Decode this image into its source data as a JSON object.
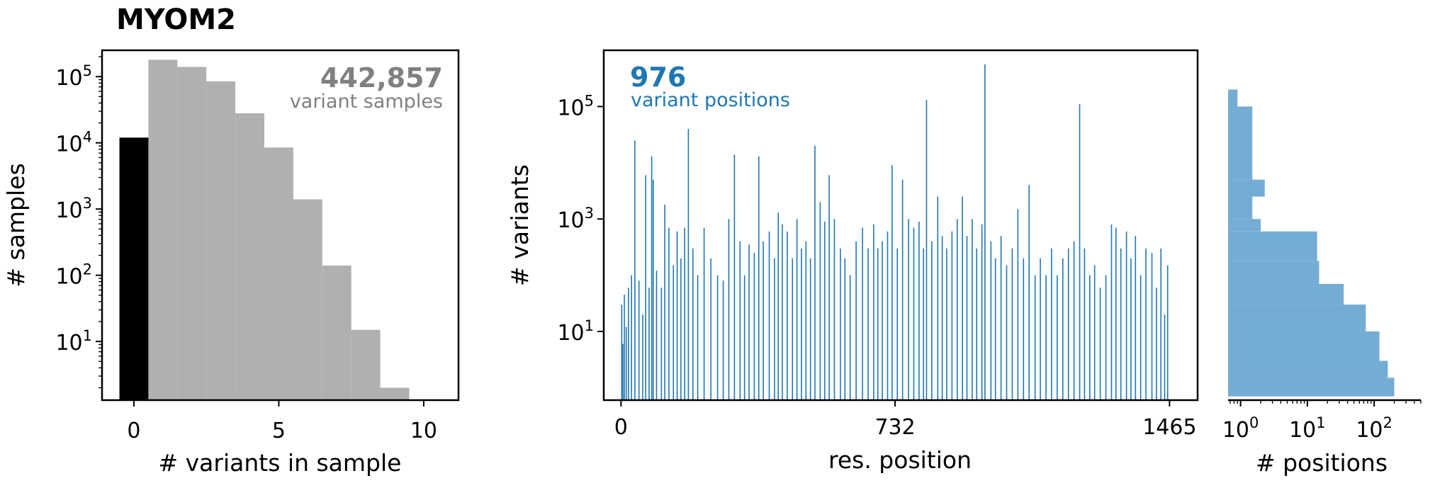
{
  "title": "MYOM2",
  "colors": {
    "gray": "#b0b0b0",
    "black": "#000000",
    "blue": "#1f77b4",
    "lightblue": "#75acd4",
    "annotation_gray": "#808080"
  },
  "chart_data": [
    {
      "id": "samples-histogram",
      "type": "bar",
      "xlabel": "# variants in sample",
      "ylabel": "# samples",
      "yscale": "log",
      "xlim": [
        -1.1,
        11.2
      ],
      "ylim": [
        1.3,
        250000
      ],
      "xticks": [
        {
          "v": 0,
          "label": "0"
        },
        {
          "v": 5,
          "label": "5"
        },
        {
          "v": 10,
          "label": "10"
        }
      ],
      "yticks": [
        {
          "v": 10,
          "exp": "1"
        },
        {
          "v": 100,
          "exp": "2"
        },
        {
          "v": 1000,
          "exp": "3"
        },
        {
          "v": 10000,
          "exp": "4"
        },
        {
          "v": 100000,
          "exp": "5"
        }
      ],
      "annotation": {
        "value": "442,857",
        "label": "variant samples"
      },
      "bars": [
        {
          "x": 0,
          "value": 12000,
          "color": "black"
        },
        {
          "x": 1,
          "value": 180000,
          "color": "gray"
        },
        {
          "x": 2,
          "value": 140000,
          "color": "gray"
        },
        {
          "x": 3,
          "value": 85000,
          "color": "gray"
        },
        {
          "x": 4,
          "value": 28000,
          "color": "gray"
        },
        {
          "x": 5,
          "value": 8500,
          "color": "gray"
        },
        {
          "x": 6,
          "value": 1400,
          "color": "gray"
        },
        {
          "x": 7,
          "value": 140,
          "color": "gray"
        },
        {
          "x": 8,
          "value": 15,
          "color": "gray"
        },
        {
          "x": 9,
          "value": 2,
          "color": "gray"
        }
      ]
    },
    {
      "id": "variants-by-position",
      "type": "bar",
      "xlabel": "res. position",
      "ylabel": "# variants",
      "yscale": "log",
      "xlim": [
        -46,
        1540
      ],
      "ylim": [
        0.6,
        1000000
      ],
      "xticks": [
        {
          "v": 0,
          "label": "0"
        },
        {
          "v": 732,
          "label": "732"
        },
        {
          "v": 1465,
          "label": "1465"
        }
      ],
      "yticks": [
        {
          "v": 10,
          "exp": "1"
        },
        {
          "v": 1000,
          "exp": "3"
        },
        {
          "v": 100000,
          "exp": "5"
        }
      ],
      "annotation": {
        "value": "976",
        "label": "variant positions"
      },
      "peaks": [
        {
          "x": 2,
          "value": 30
        },
        {
          "x": 5,
          "value": 6
        },
        {
          "x": 9,
          "value": 45
        },
        {
          "x": 14,
          "value": 12
        },
        {
          "x": 20,
          "value": 60
        },
        {
          "x": 28,
          "value": 100
        },
        {
          "x": 37,
          "value": 25000
        },
        {
          "x": 48,
          "value": 80
        },
        {
          "x": 58,
          "value": 20
        },
        {
          "x": 66,
          "value": 6000
        },
        {
          "x": 75,
          "value": 60
        },
        {
          "x": 82,
          "value": 13000
        },
        {
          "x": 86,
          "value": 5000
        },
        {
          "x": 95,
          "value": 120
        },
        {
          "x": 108,
          "value": 60
        },
        {
          "x": 117,
          "value": 1800
        },
        {
          "x": 128,
          "value": 700
        },
        {
          "x": 140,
          "value": 150
        },
        {
          "x": 150,
          "value": 600
        },
        {
          "x": 160,
          "value": 200
        },
        {
          "x": 170,
          "value": 700
        },
        {
          "x": 180,
          "value": 40000
        },
        {
          "x": 192,
          "value": 300
        },
        {
          "x": 205,
          "value": 100
        },
        {
          "x": 222,
          "value": 700
        },
        {
          "x": 240,
          "value": 200
        },
        {
          "x": 258,
          "value": 100
        },
        {
          "x": 273,
          "value": 80
        },
        {
          "x": 288,
          "value": 1000
        },
        {
          "x": 303,
          "value": 14000
        },
        {
          "x": 318,
          "value": 400
        },
        {
          "x": 330,
          "value": 100
        },
        {
          "x": 342,
          "value": 350
        },
        {
          "x": 356,
          "value": 250
        },
        {
          "x": 368,
          "value": 13000
        },
        {
          "x": 380,
          "value": 400
        },
        {
          "x": 396,
          "value": 600
        },
        {
          "x": 410,
          "value": 200
        },
        {
          "x": 420,
          "value": 1300
        },
        {
          "x": 431,
          "value": 800
        },
        {
          "x": 444,
          "value": 600
        },
        {
          "x": 458,
          "value": 200
        },
        {
          "x": 470,
          "value": 1000
        },
        {
          "x": 482,
          "value": 300
        },
        {
          "x": 494,
          "value": 400
        },
        {
          "x": 506,
          "value": 200
        },
        {
          "x": 518,
          "value": 20000
        },
        {
          "x": 532,
          "value": 2000
        },
        {
          "x": 544,
          "value": 900
        },
        {
          "x": 556,
          "value": 6000
        },
        {
          "x": 570,
          "value": 1000
        },
        {
          "x": 586,
          "value": 300
        },
        {
          "x": 598,
          "value": 200
        },
        {
          "x": 612,
          "value": 100
        },
        {
          "x": 628,
          "value": 400
        },
        {
          "x": 645,
          "value": 700
        },
        {
          "x": 660,
          "value": 300
        },
        {
          "x": 675,
          "value": 800
        },
        {
          "x": 686,
          "value": 300
        },
        {
          "x": 698,
          "value": 400
        },
        {
          "x": 712,
          "value": 600
        },
        {
          "x": 724,
          "value": 9000
        },
        {
          "x": 738,
          "value": 300
        },
        {
          "x": 752,
          "value": 5000
        },
        {
          "x": 768,
          "value": 1000
        },
        {
          "x": 782,
          "value": 700
        },
        {
          "x": 796,
          "value": 900
        },
        {
          "x": 808,
          "value": 300
        },
        {
          "x": 816,
          "value": 130000
        },
        {
          "x": 830,
          "value": 400
        },
        {
          "x": 846,
          "value": 2500
        },
        {
          "x": 858,
          "value": 500
        },
        {
          "x": 870,
          "value": 300
        },
        {
          "x": 884,
          "value": 600
        },
        {
          "x": 898,
          "value": 1000
        },
        {
          "x": 912,
          "value": 2500
        },
        {
          "x": 924,
          "value": 500
        },
        {
          "x": 938,
          "value": 1000
        },
        {
          "x": 950,
          "value": 300
        },
        {
          "x": 964,
          "value": 800
        },
        {
          "x": 972,
          "value": 560000
        },
        {
          "x": 988,
          "value": 400
        },
        {
          "x": 1000,
          "value": 200
        },
        {
          "x": 1015,
          "value": 500
        },
        {
          "x": 1030,
          "value": 150
        },
        {
          "x": 1045,
          "value": 300
        },
        {
          "x": 1060,
          "value": 1500
        },
        {
          "x": 1075,
          "value": 200
        },
        {
          "x": 1090,
          "value": 4000
        },
        {
          "x": 1106,
          "value": 100
        },
        {
          "x": 1120,
          "value": 200
        },
        {
          "x": 1135,
          "value": 100
        },
        {
          "x": 1150,
          "value": 300
        },
        {
          "x": 1165,
          "value": 100
        },
        {
          "x": 1180,
          "value": 200
        },
        {
          "x": 1195,
          "value": 300
        },
        {
          "x": 1210,
          "value": 400
        },
        {
          "x": 1225,
          "value": 110000
        },
        {
          "x": 1238,
          "value": 300
        },
        {
          "x": 1252,
          "value": 100
        },
        {
          "x": 1265,
          "value": 150
        },
        {
          "x": 1280,
          "value": 60
        },
        {
          "x": 1295,
          "value": 100
        },
        {
          "x": 1310,
          "value": 800
        },
        {
          "x": 1322,
          "value": 700
        },
        {
          "x": 1335,
          "value": 300
        },
        {
          "x": 1350,
          "value": 600
        },
        {
          "x": 1362,
          "value": 200
        },
        {
          "x": 1374,
          "value": 500
        },
        {
          "x": 1388,
          "value": 100
        },
        {
          "x": 1402,
          "value": 300
        },
        {
          "x": 1418,
          "value": 250
        },
        {
          "x": 1430,
          "value": 60
        },
        {
          "x": 1442,
          "value": 300
        },
        {
          "x": 1452,
          "value": 20
        },
        {
          "x": 1460,
          "value": 150
        }
      ]
    },
    {
      "id": "positions-histogram",
      "type": "bar",
      "orientation": "horizontal",
      "xlabel": "# positions",
      "xscale": "log",
      "yscale": "log",
      "xlim": [
        0.65,
        500
      ],
      "xticks": [
        {
          "v": 1,
          "exp": "0"
        },
        {
          "v": 10,
          "exp": "1"
        },
        {
          "v": 100,
          "exp": "2"
        }
      ],
      "bins": [
        {
          "y0": 100000,
          "y1": 200000,
          "count": 0.9
        },
        {
          "y0": 5000,
          "y1": 100000,
          "count": 1.5
        },
        {
          "y0": 2500,
          "y1": 5000,
          "count": 2.3
        },
        {
          "y0": 1000,
          "y1": 2500,
          "count": 1.5
        },
        {
          "y0": 600,
          "y1": 1000,
          "count": 2
        },
        {
          "y0": 180,
          "y1": 600,
          "count": 14
        },
        {
          "y0": 70,
          "y1": 180,
          "count": 15
        },
        {
          "y0": 30,
          "y1": 70,
          "count": 35
        },
        {
          "y0": 10,
          "y1": 30,
          "count": 75
        },
        {
          "y0": 3,
          "y1": 10,
          "count": 120
        },
        {
          "y0": 1.5,
          "y1": 3,
          "count": 160
        },
        {
          "y0": 0.7,
          "y1": 1.5,
          "count": 200
        }
      ]
    }
  ]
}
